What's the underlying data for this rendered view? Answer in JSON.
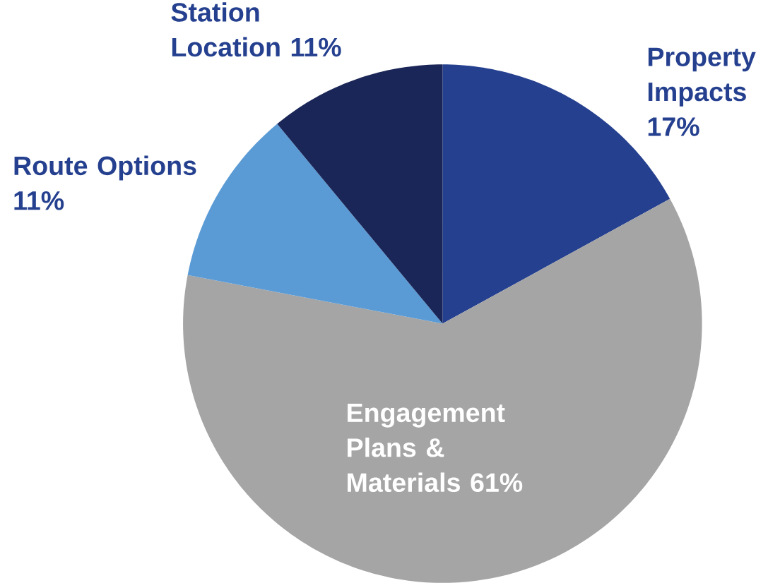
{
  "chart_data": {
    "type": "pie",
    "categories": [
      "Property Impacts",
      "Engagement Plans & Materials",
      "Route Options",
      "Station Location"
    ],
    "values": [
      17,
      61,
      11,
      11
    ],
    "value_labels": [
      "17%",
      "61%",
      "11%",
      "11%"
    ],
    "colors": [
      "#25408f",
      "#a5a5a5",
      "#5b9bd5",
      "#1a2657"
    ]
  }
}
